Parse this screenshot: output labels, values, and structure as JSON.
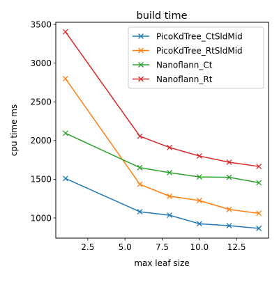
{
  "chart_data": {
    "type": "line",
    "title": "build time",
    "xlabel": "max leaf size",
    "ylabel": "cpu time ms",
    "xlim": [
      0.35,
      14.65
    ],
    "ylim": [
      739,
      3528
    ],
    "x_ticks": [
      2.5,
      5.0,
      7.5,
      10.0,
      12.5
    ],
    "x_tick_labels": [
      "2.5",
      "5.0",
      "7.5",
      "10.0",
      "12.5"
    ],
    "y_ticks": [
      1000,
      1500,
      2000,
      2500,
      3000,
      3500
    ],
    "y_tick_labels": [
      "1000",
      "1500",
      "2000",
      "2500",
      "3000",
      "3500"
    ],
    "grid": false,
    "legend_position": "top-right",
    "marker": "x",
    "x": [
      1,
      6,
      8,
      10,
      12,
      14
    ],
    "series": [
      {
        "name": "PicoKdTree_CtSldMid",
        "color": "#1f77b4",
        "values": [
          1510,
          1080,
          1035,
          925,
          900,
          865
        ]
      },
      {
        "name": "PicoKdTree_RtSldMid",
        "color": "#ff7f0e",
        "values": [
          2800,
          1435,
          1280,
          1225,
          1110,
          1060
        ]
      },
      {
        "name": "Nanoflann_Ct",
        "color": "#2ca02c",
        "values": [
          2095,
          1650,
          1585,
          1530,
          1525,
          1455
        ]
      },
      {
        "name": "Nanoflann_Rt",
        "color": "#d62728",
        "values": [
          3405,
          2055,
          1910,
          1800,
          1720,
          1665
        ]
      }
    ]
  }
}
